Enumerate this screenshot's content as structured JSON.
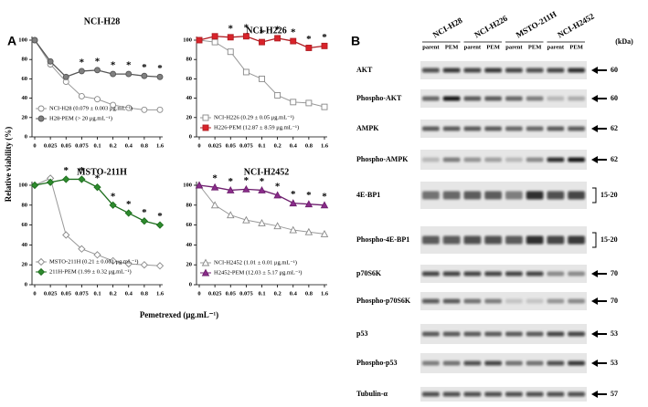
{
  "panel_labels": [
    "A",
    "B"
  ],
  "y_axis_label": "Relative viability (%)",
  "x_axis_label": "Pemetrexed (μg.mL⁻¹)",
  "chart_data": [
    {
      "type": "line",
      "title": "NCI-H28",
      "categories": [
        "0",
        "0.025",
        "0.05",
        "0.075",
        "0.1",
        "0.2",
        "0.4",
        "0.8",
        "1.6"
      ],
      "ylim": [
        0,
        100
      ],
      "yticks": [
        0,
        20,
        40,
        60,
        80,
        100
      ],
      "series": [
        {
          "name": "NCI-H28 (0.079 ± 0.003 μg.mL⁻¹)",
          "color": "#888888",
          "fill": "#ffffff",
          "marker": "circle",
          "values": [
            100,
            75,
            57,
            42,
            39,
            33,
            30,
            28,
            28
          ]
        },
        {
          "name": "H28-PEM (> 20 μg.mL⁻¹)",
          "color": "#555555",
          "fill": "#808080",
          "marker": "circle",
          "values": [
            100,
            78,
            62,
            68,
            69,
            65,
            65,
            63,
            62
          ]
        }
      ],
      "annotations": [
        {
          "text": "*",
          "category": "0.075"
        },
        {
          "text": "*",
          "category": "0.1"
        },
        {
          "text": "*",
          "category": "0.2"
        },
        {
          "text": "*",
          "category": "0.4"
        },
        {
          "text": "*",
          "category": "0.8"
        },
        {
          "text": "*",
          "category": "1.6"
        }
      ]
    },
    {
      "type": "line",
      "title": "NCI-H226",
      "categories": [
        "0",
        "0.025",
        "0.05",
        "0.075",
        "0.1",
        "0.2",
        "0.4",
        "0.8",
        "1.6"
      ],
      "ylim": [
        0,
        100
      ],
      "yticks": [
        0,
        20,
        40,
        60,
        80,
        100
      ],
      "series": [
        {
          "name": "NCI-H226 (0.29 ± 0.05 μg.mL⁻¹)",
          "color": "#888888",
          "fill": "#ffffff",
          "marker": "square",
          "values": [
            100,
            98,
            88,
            67,
            60,
            43,
            36,
            35,
            31
          ]
        },
        {
          "name": "H226-PEM (12.87 ± 8.59 μg.mL⁻¹)",
          "color": "#b01c22",
          "fill": "#d9232a",
          "marker": "square",
          "values": [
            100,
            104,
            103,
            104,
            98,
            102,
            99,
            92,
            94
          ]
        }
      ],
      "annotations": [
        {
          "text": "*",
          "category": "0.05"
        },
        {
          "text": "*",
          "category": "0.075"
        },
        {
          "text": "*",
          "category": "0.1"
        },
        {
          "text": "*",
          "category": "0.2"
        },
        {
          "text": "*",
          "category": "0.4"
        },
        {
          "text": "*",
          "category": "0.8"
        },
        {
          "text": "*",
          "category": "1.6"
        }
      ]
    },
    {
      "type": "line",
      "title": "MSTO-211H",
      "categories": [
        "0",
        "0.025",
        "0.05",
        "0.075",
        "0.1",
        "0.2",
        "0.4",
        "0.8",
        "1.6"
      ],
      "ylim": [
        0,
        100
      ],
      "yticks": [
        0,
        20,
        40,
        60,
        80,
        100
      ],
      "series": [
        {
          "name": "MSTO-211H (0.21 ± 0.001 μg.mL⁻¹)",
          "color": "#888888",
          "fill": "#ffffff",
          "marker": "diamond",
          "values": [
            100,
            107,
            50,
            36,
            30,
            24,
            21,
            20,
            19
          ]
        },
        {
          "name": "211H-PEM (1.99 ± 0.32 μg.mL⁻¹)",
          "color": "#1e6e1e",
          "fill": "#2e8b2e",
          "marker": "diamond",
          "values": [
            100,
            103,
            106,
            106,
            98,
            80,
            72,
            64,
            60
          ]
        }
      ],
      "annotations": [
        {
          "text": "*",
          "category": "0.05"
        },
        {
          "text": "*",
          "category": "0.075"
        },
        {
          "text": "*",
          "category": "0.1"
        },
        {
          "text": "*",
          "category": "0.2"
        },
        {
          "text": "*",
          "category": "0.4"
        },
        {
          "text": "*",
          "category": "0.8"
        },
        {
          "text": "*",
          "category": "1.6"
        }
      ]
    },
    {
      "type": "line",
      "title": "NCI-H2452",
      "categories": [
        "0",
        "0.025",
        "0.05",
        "0.075",
        "0.1",
        "0.2",
        "0.4",
        "0.8",
        "1.6"
      ],
      "ylim": [
        0,
        100
      ],
      "yticks": [
        0,
        20,
        40,
        60,
        80,
        100
      ],
      "series": [
        {
          "name": "NCI-H2452 (1.01 ± 0.01 μg.mL⁻¹)",
          "color": "#888888",
          "fill": "#ffffff",
          "marker": "triangle",
          "values": [
            100,
            80,
            70,
            65,
            62,
            59,
            55,
            53,
            51
          ]
        },
        {
          "name": "H2452-PEM (12.03 ± 5.17 μg.mL⁻¹)",
          "color": "#6e1f6e",
          "fill": "#8b2c8b",
          "marker": "triangle",
          "values": [
            100,
            98,
            95,
            96,
            95,
            90,
            82,
            81,
            80
          ]
        }
      ],
      "annotations": [
        {
          "text": "*",
          "category": "0.025"
        },
        {
          "text": "*",
          "category": "0.05"
        },
        {
          "text": "*",
          "category": "0.075"
        },
        {
          "text": "*",
          "category": "0.1"
        },
        {
          "text": "*",
          "category": "0.2"
        },
        {
          "text": "*",
          "category": "0.4"
        },
        {
          "text": "*",
          "category": "0.8"
        },
        {
          "text": "*",
          "category": "1.6"
        }
      ]
    }
  ],
  "blot": {
    "cell_lines": [
      "NCI-H28",
      "NCI-H226",
      "MSTO-211H",
      "NCI-H2452"
    ],
    "lane_labels": [
      "parent",
      "PEM",
      "parent",
      "PEM",
      "parent",
      "PEM",
      "parent",
      "PEM"
    ],
    "unit": "(kDa)",
    "rows": [
      {
        "label": "AKT",
        "kda": "60"
      },
      {
        "label": "Phospho-AKT",
        "kda": "60"
      },
      {
        "label": "AMPK",
        "kda": "62"
      },
      {
        "label": "Phospho-AMPK",
        "kda": "62"
      },
      {
        "label": "4E-BP1",
        "kda": "15-20"
      },
      {
        "label": "Phospho-4E-BP1",
        "kda": "15-20"
      },
      {
        "label": "p70S6K",
        "kda": "70"
      },
      {
        "label": "Phospho-p70S6K",
        "kda": "70"
      },
      {
        "label": "p53",
        "kda": "53"
      },
      {
        "label": "Phospho-p53",
        "kda": "53"
      },
      {
        "label": "Tubulin-α",
        "kda": "57"
      }
    ]
  }
}
